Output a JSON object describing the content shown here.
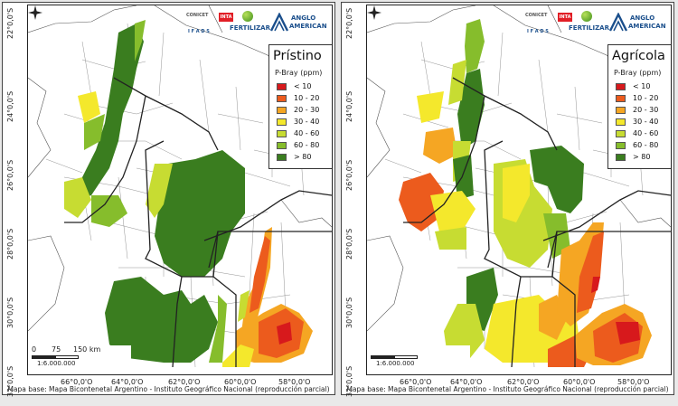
{
  "panels": [
    {
      "id": "left",
      "legend": {
        "title": "Prístino",
        "subtitle": "P-Bray (ppm)",
        "classes": [
          {
            "label": "< 10",
            "color": "#d7191c"
          },
          {
            "label": "10 - 20",
            "color": "#ec5b1d"
          },
          {
            "label": "20 - 30",
            "color": "#f5a623"
          },
          {
            "label": "30 - 40",
            "color": "#f4e82c"
          },
          {
            "label": "40 - 60",
            "color": "#c7dc32"
          },
          {
            "label": "60 - 80",
            "color": "#86bd2c"
          },
          {
            "label": "> 80",
            "color": "#3a7d1f"
          }
        ]
      }
    },
    {
      "id": "right",
      "legend": {
        "title": "Agrícola",
        "subtitle": "P-Bray (ppm)",
        "classes": [
          {
            "label": "< 10",
            "color": "#d7191c"
          },
          {
            "label": "10 - 20",
            "color": "#ec5b1d"
          },
          {
            "label": "20 - 30",
            "color": "#f5a623"
          },
          {
            "label": "30 - 40",
            "color": "#f4e82c"
          },
          {
            "label": "40 - 60",
            "color": "#c7dc32"
          },
          {
            "label": "60 - 80",
            "color": "#86bd2c"
          },
          {
            "label": "> 80",
            "color": "#3a7d1f"
          }
        ]
      }
    }
  ],
  "lat_labels": [
    "22°0,0'S",
    "24°0,0'S",
    "26°0,0'S",
    "28°0,0'S",
    "30°0,0'S",
    "32°0,0'S"
  ],
  "lon_labels": [
    "66°0,0'O",
    "64°0,0'O",
    "62°0,0'O",
    "60°0,0'O",
    "58°0,0'O"
  ],
  "scale": {
    "ticks": [
      "0",
      "75",
      "150 km"
    ],
    "ratio": "1:6.000.000"
  },
  "logos": {
    "conicet": "CONICET",
    "inta": "INTA",
    "ifads": "I F A D S",
    "fertilizar": "FERTILIZAR",
    "anglo": "ANGLO",
    "american": "AMERICAN"
  },
  "footer": "Mapa base: Mapa Bicontenetal Argentino - Instituto Geográfico Nacional (reproducción parcial)"
}
